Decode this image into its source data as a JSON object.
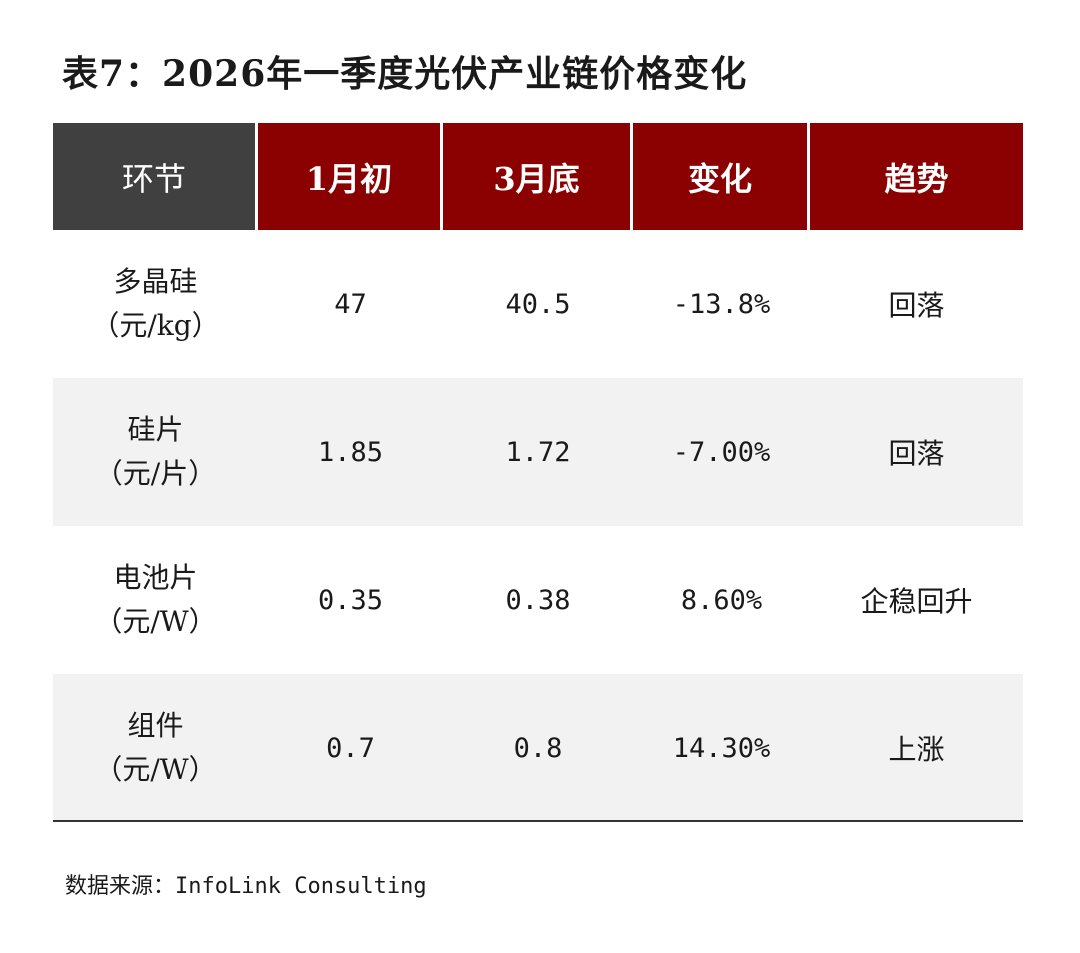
{
  "title": "表7：2026年一季度光伏产业链价格变化",
  "header": [
    "环节",
    "1月初",
    "3月底",
    "变化",
    "趋势"
  ],
  "rows": [
    {
      "name": "多晶硅",
      "unit": "（元/kg）",
      "start": "47",
      "end": "40.5",
      "change": "-13.8%",
      "trend": "回落"
    },
    {
      "name": "硅片",
      "unit": "（元/片）",
      "start": "1.85",
      "end": "1.72",
      "change": "-7.00%",
      "trend": "回落"
    },
    {
      "name": "电池片",
      "unit": "（元/W）",
      "start": "0.35",
      "end": "0.38",
      "change": "8.60%",
      "trend": "企稳回升"
    },
    {
      "name": "组件",
      "unit": "（元/W）",
      "start": "0.7",
      "end": "0.8",
      "change": "14.30%",
      "trend": "上涨"
    }
  ],
  "source": "数据来源：InfoLink Consulting",
  "colors": {
    "header_dark": "#404040",
    "header_red": "#8b0000",
    "row_shade": "#f2f2f2"
  }
}
